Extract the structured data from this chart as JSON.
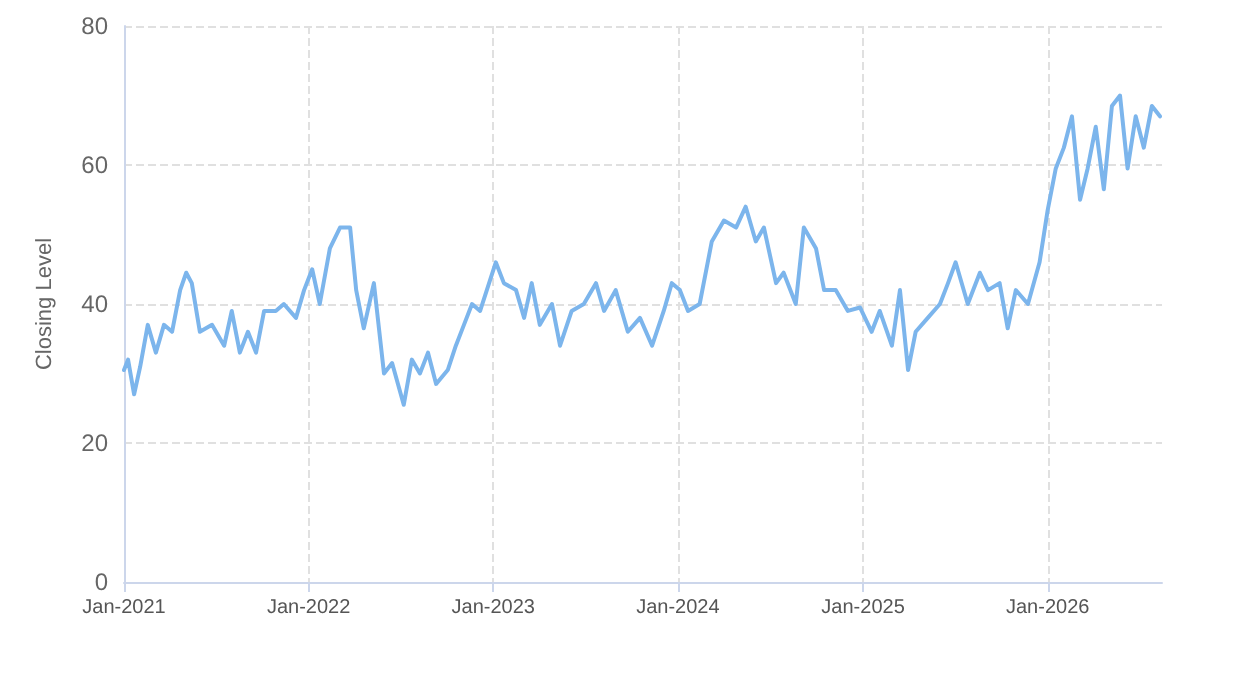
{
  "chart_data": {
    "type": "line",
    "ylabel": "Closing Level",
    "grid": true,
    "marker": "none",
    "line_style": "solid",
    "xlim": [
      "2021-01-01",
      "2026-08-15"
    ],
    "ylim": [
      0,
      80
    ],
    "yticks": [
      0,
      20,
      40,
      60,
      80
    ],
    "xticks": [
      {
        "value": "2021-01-01",
        "label": "Jan-2021"
      },
      {
        "value": "2022-01-01",
        "label": "Jan-2022"
      },
      {
        "value": "2023-01-01",
        "label": "Jan-2023"
      },
      {
        "value": "2024-01-01",
        "label": "Jan-2024"
      },
      {
        "value": "2025-01-01",
        "label": "Jan-2025"
      },
      {
        "value": "2026-01-01",
        "label": "Jan-2026"
      }
    ],
    "x": [
      "2021-01-01",
      "2021-01-09",
      "2021-01-21",
      "2021-02-02",
      "2021-02-17",
      "2021-03-05",
      "2021-03-21",
      "2021-04-06",
      "2021-04-22",
      "2021-05-04",
      "2021-05-15",
      "2021-05-31",
      "2021-06-24",
      "2021-07-18",
      "2021-08-02",
      "2021-08-18",
      "2021-09-03",
      "2021-09-19",
      "2021-10-05",
      "2021-10-28",
      "2021-11-13",
      "2021-12-07",
      "2021-12-23",
      "2022-01-08",
      "2022-01-23",
      "2022-02-12",
      "2022-03-04",
      "2022-03-24",
      "2022-04-05",
      "2022-04-20",
      "2022-05-10",
      "2022-05-30",
      "2022-06-15",
      "2022-07-08",
      "2022-07-24",
      "2022-08-09",
      "2022-08-25",
      "2022-09-10",
      "2022-10-03",
      "2022-10-19",
      "2022-11-04",
      "2022-11-20",
      "2022-12-06",
      "2023-01-06",
      "2023-01-22",
      "2023-02-15",
      "2023-03-03",
      "2023-03-18",
      "2023-04-03",
      "2023-04-27",
      "2023-05-13",
      "2023-06-05",
      "2023-06-29",
      "2023-07-23",
      "2023-08-08",
      "2023-08-31",
      "2023-09-24",
      "2023-10-18",
      "2023-11-11",
      "2023-12-04",
      "2023-12-20",
      "2024-01-05",
      "2024-01-21",
      "2024-02-13",
      "2024-03-08",
      "2024-04-01",
      "2024-04-25",
      "2024-05-14",
      "2024-06-03",
      "2024-06-19",
      "2024-07-13",
      "2024-07-28",
      "2024-08-21",
      "2024-09-06",
      "2024-09-30",
      "2024-10-16",
      "2024-11-08",
      "2024-12-02",
      "2024-12-26",
      "2025-01-18",
      "2025-02-03",
      "2025-02-27",
      "2025-03-15",
      "2025-03-31",
      "2025-04-15",
      "2025-05-09",
      "2025-06-02",
      "2025-06-18",
      "2025-07-03",
      "2025-07-27",
      "2025-08-20",
      "2025-09-05",
      "2025-09-28",
      "2025-10-14",
      "2025-10-30",
      "2025-11-23",
      "2025-12-16",
      "2026-01-01",
      "2026-01-17",
      "2026-02-02",
      "2026-02-18",
      "2026-03-06",
      "2026-03-21",
      "2026-04-06",
      "2026-04-22",
      "2026-05-08",
      "2026-05-24",
      "2026-06-08",
      "2026-06-24",
      "2026-07-10",
      "2026-07-26",
      "2026-08-11"
    ],
    "series": [
      {
        "color": "#7cb5ec",
        "values": [
          30.5,
          32,
          27,
          31,
          37,
          33,
          37,
          36,
          42,
          44.5,
          43,
          36,
          37,
          34,
          39,
          33,
          36,
          33,
          39,
          39,
          40,
          38,
          42,
          45,
          40,
          48,
          51,
          51,
          42,
          36.5,
          43,
          30,
          31.5,
          25.5,
          32,
          30,
          33,
          28.5,
          30.5,
          34,
          37,
          40,
          39,
          46,
          43,
          42,
          38,
          43,
          37,
          40,
          34,
          39,
          40,
          43,
          39,
          42,
          36,
          38,
          34,
          39,
          43,
          42,
          39,
          40,
          49,
          52,
          51,
          54,
          49,
          51,
          43,
          44.5,
          40,
          51,
          48,
          42,
          42,
          39,
          39.5,
          36,
          39,
          34,
          42,
          30.5,
          36,
          38,
          40,
          43,
          46,
          40,
          44.5,
          42,
          43,
          36.5,
          42,
          40,
          46,
          53.5,
          59.5,
          62.5,
          67,
          55,
          59.5,
          65.5,
          56.5,
          68.5,
          70,
          59.5,
          67,
          62.5,
          68.5,
          67
        ]
      }
    ]
  }
}
